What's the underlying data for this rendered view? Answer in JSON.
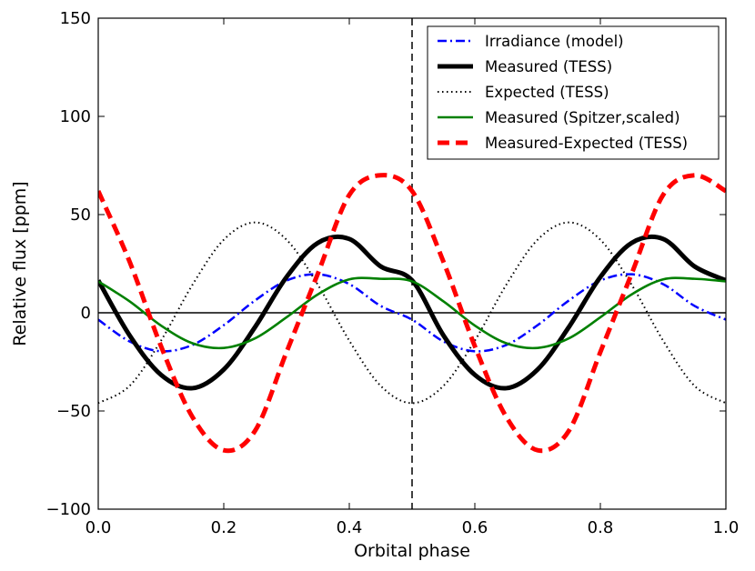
{
  "chart_data": {
    "type": "line",
    "title": "",
    "xlabel": "Orbital phase",
    "ylabel": "Relative flux [ppm]",
    "xlim": [
      0.0,
      1.0
    ],
    "ylim": [
      -100,
      150
    ],
    "xticks": [
      0.0,
      0.2,
      0.4,
      0.6,
      0.8,
      1.0
    ],
    "xtick_labels": [
      "0.0",
      "0.2",
      "0.4",
      "0.6",
      "0.8",
      "1.0"
    ],
    "yticks": [
      -100,
      -50,
      0,
      50,
      100,
      150
    ],
    "ytick_labels": [
      "−100",
      "−50",
      "0",
      "50",
      "100",
      "150"
    ],
    "grid": false,
    "legend_position": "top-right",
    "reference_lines": [
      {
        "kind": "horizontal",
        "y": 0,
        "style": "solid",
        "color": "#000000"
      },
      {
        "kind": "vertical",
        "x": 0.5,
        "style": "dashed",
        "color": "#000000"
      }
    ],
    "x": [
      0.0,
      0.05,
      0.1,
      0.15,
      0.2,
      0.25,
      0.3,
      0.35,
      0.4,
      0.45,
      0.5,
      0.55,
      0.6,
      0.65,
      0.7,
      0.75,
      0.8,
      0.85,
      0.9,
      0.95,
      1.0
    ],
    "series": [
      {
        "name": "Irradiance (model)",
        "style": "dashdot",
        "color": "#0000ff",
        "values": [
          -3.5,
          -14.6,
          -19.6,
          -16.4,
          -6.3,
          6.3,
          16.4,
          19.6,
          14.6,
          3.5,
          -3.5,
          -14.6,
          -19.6,
          -16.4,
          -6.3,
          6.3,
          16.4,
          19.6,
          14.6,
          3.5,
          -3.5
        ]
      },
      {
        "name": "Measured (TESS)",
        "style": "solid-thick",
        "color": "#000000",
        "values": [
          16.5,
          -11.5,
          -31.6,
          -38.4,
          -28.9,
          -7.2,
          18.2,
          35.6,
          37.6,
          23.6,
          16.5,
          -11.5,
          -31.6,
          -38.4,
          -28.9,
          -7.2,
          18.2,
          35.6,
          37.6,
          23.6,
          16.5
        ]
      },
      {
        "name": "Expected (TESS)",
        "style": "dotted",
        "color": "#000000",
        "values": [
          -46.0,
          -37.2,
          -14.2,
          14.2,
          37.2,
          46.0,
          37.2,
          14.2,
          -14.2,
          -37.2,
          -46.0,
          -37.2,
          -14.2,
          14.2,
          37.2,
          46.0,
          37.2,
          14.2,
          -14.2,
          -37.2,
          -46.0
        ]
      },
      {
        "name": "Measured (Spitzer,scaled)",
        "style": "solid",
        "color": "#008000",
        "values": [
          16.0,
          5.8,
          -6.5,
          -15.5,
          -17.9,
          -13.0,
          -2.3,
          9.4,
          17.0,
          17.3,
          16.0,
          5.8,
          -6.5,
          -15.5,
          -17.9,
          -13.0,
          -2.3,
          9.4,
          17.0,
          17.3,
          16.0
        ]
      },
      {
        "name": "Measured-Expected (TESS)",
        "style": "dashed-thick",
        "color": "#ff0000",
        "values": [
          62.0,
          26.0,
          -17.0,
          -53.0,
          -70.0,
          -60.0,
          -20.0,
          20.0,
          60.0,
          70.0,
          62.0,
          26.0,
          -17.0,
          -53.0,
          -70.0,
          -60.0,
          -20.0,
          20.0,
          60.0,
          70.0,
          62.0
        ]
      }
    ]
  }
}
